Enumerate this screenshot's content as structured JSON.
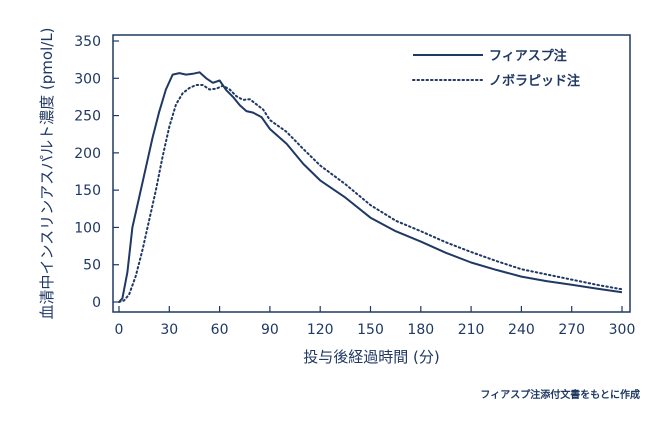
{
  "chart_data": {
    "type": "line",
    "xlabel": "投与後経過時間 (分)",
    "ylabel": "血清中インスリンアスパルト濃度 (pmol/L)",
    "xlim": [
      0,
      300
    ],
    "ylim": [
      0,
      350
    ],
    "xticks": [
      0,
      30,
      60,
      90,
      120,
      150,
      180,
      210,
      240,
      270,
      300
    ],
    "yticks": [
      0,
      50,
      100,
      150,
      200,
      250,
      300,
      350
    ],
    "grid": false,
    "legend_position": "top-right",
    "colors": {
      "line": "#1f3864",
      "axis": "#1f3864",
      "text": "#1f3864"
    },
    "source_note": "フィアスプ注添付文書をもとに作成",
    "series": [
      {
        "name": "フィアスプ注",
        "style": "solid",
        "x": [
          0,
          2,
          5,
          8,
          12,
          16,
          20,
          24,
          28,
          32,
          36,
          40,
          44,
          48,
          52,
          56,
          60,
          64,
          68,
          72,
          76,
          80,
          85,
          90,
          100,
          110,
          120,
          135,
          150,
          165,
          180,
          195,
          210,
          225,
          240,
          255,
          270,
          285,
          300
        ],
        "y": [
          0,
          5,
          40,
          100,
          140,
          180,
          220,
          255,
          285,
          305,
          307,
          305,
          306,
          308,
          300,
          294,
          297,
          284,
          275,
          264,
          256,
          254,
          248,
          232,
          212,
          185,
          163,
          140,
          113,
          95,
          81,
          66,
          53,
          43,
          34,
          28,
          23,
          18,
          13
        ]
      },
      {
        "name": "ノボラピッド注",
        "style": "dotted",
        "x": [
          0,
          3,
          6,
          10,
          14,
          18,
          22,
          26,
          30,
          34,
          38,
          42,
          46,
          50,
          54,
          58,
          62,
          66,
          70,
          74,
          78,
          82,
          86,
          90,
          100,
          110,
          120,
          135,
          150,
          165,
          180,
          195,
          210,
          225,
          240,
          255,
          270,
          285,
          300
        ],
        "y": [
          0,
          2,
          10,
          35,
          70,
          110,
          150,
          195,
          235,
          265,
          280,
          287,
          291,
          291,
          285,
          286,
          290,
          285,
          276,
          271,
          272,
          265,
          258,
          244,
          228,
          205,
          183,
          158,
          130,
          109,
          95,
          80,
          67,
          55,
          44,
          37,
          30,
          23,
          17
        ]
      }
    ]
  }
}
